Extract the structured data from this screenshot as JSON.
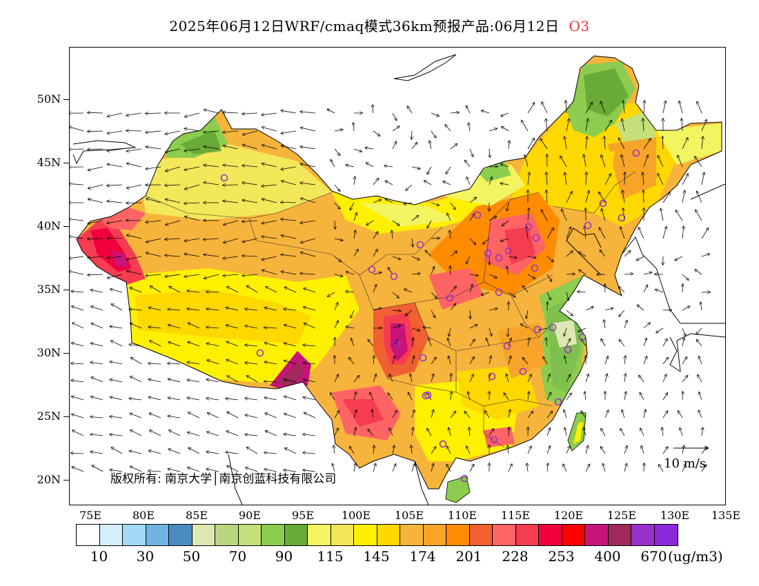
{
  "title": {
    "text": "2025年06月12日WRF/cmaq模式36km预报产品:06月12日",
    "pollutant": "O3"
  },
  "copyright": "版权所有: 南京大学│南京创蓝科技有限公司",
  "wind_reference": "10 m/s",
  "axes": {
    "lat_labels": [
      "50N",
      "45N",
      "40N",
      "35N",
      "30N",
      "25N",
      "20N"
    ],
    "lon_labels": [
      "75E",
      "80E",
      "85E",
      "90E",
      "95E",
      "100E",
      "105E",
      "110E",
      "115E",
      "120E",
      "125E",
      "130E",
      "135E"
    ]
  },
  "legend": {
    "unit": "(ug/m3)",
    "labels": [
      "10",
      "30",
      "50",
      "70",
      "90",
      "115",
      "145",
      "174",
      "201",
      "228",
      "253",
      "400",
      "670"
    ],
    "colors": [
      "#ffffff",
      "#d6eefb",
      "#a2d9f5",
      "#6fb3e0",
      "#4a8cc2",
      "#dde8b4",
      "#b8d67e",
      "#c4e07a",
      "#8ccc4e",
      "#6aaa36",
      "#f2f560",
      "#f3e75a",
      "#fff000",
      "#ffd800",
      "#f7b43c",
      "#f7a428",
      "#ff8c00",
      "#f06030",
      "#ff6464",
      "#f63c50",
      "#f0003c",
      "#ff0000",
      "#c8147a",
      "#a0285a",
      "#9632c8",
      "#8c28dc"
    ]
  },
  "colors": {
    "green": "#7fbf4d",
    "pale_green": "#c4e07a",
    "yellow": "#fff000",
    "light_yellow": "#f2f560",
    "orange": "#f7a428",
    "dark_orange": "#ff8c00",
    "red": "#f63c50",
    "magenta": "#c8147a",
    "station": "#9632c8"
  }
}
